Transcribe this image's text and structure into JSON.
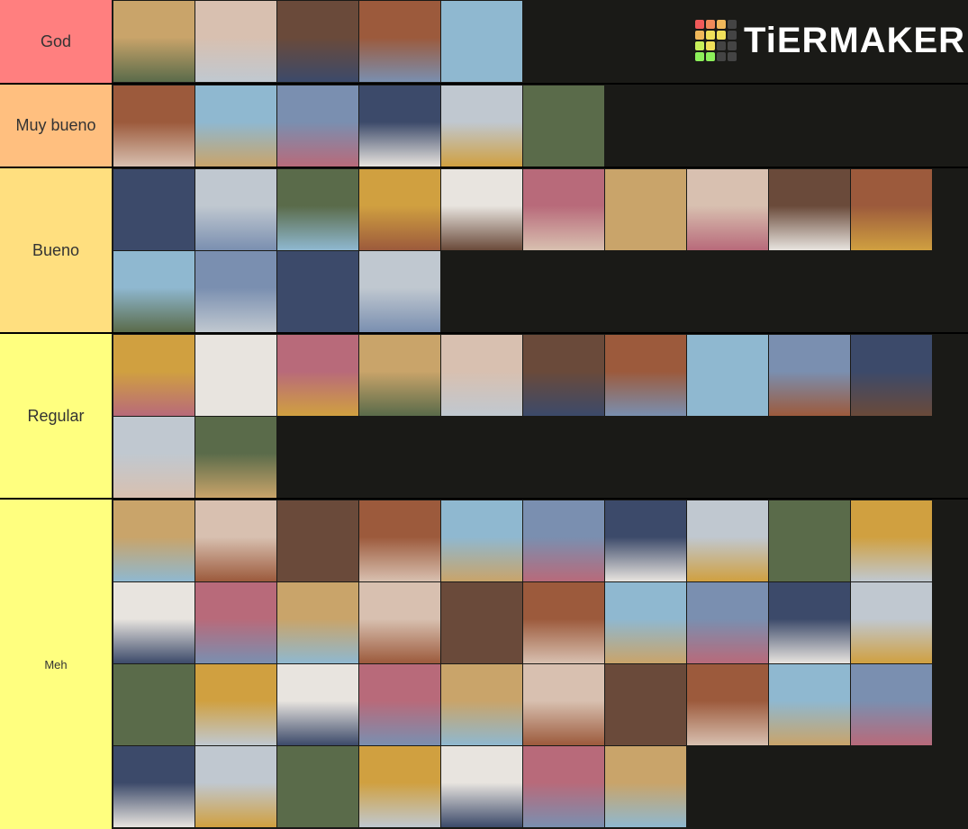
{
  "logo": "TiERMAKER",
  "tiers": [
    {
      "label": "God"
    },
    {
      "label": "Muy bueno"
    },
    {
      "label": "Bueno"
    },
    {
      "label": "Regular"
    },
    {
      "label": "Meh"
    }
  ]
}
